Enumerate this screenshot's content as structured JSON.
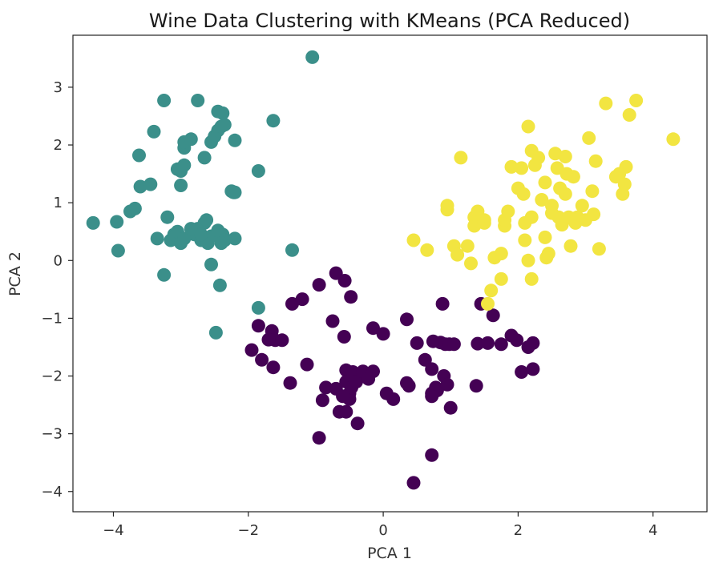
{
  "chart_data": {
    "type": "scatter",
    "title": "Wine Data Clustering with KMeans (PCA Reduced)",
    "xlabel": "PCA 1",
    "ylabel": "PCA 2",
    "xlim": [
      -4.6,
      4.8
    ],
    "ylim": [
      -4.35,
      3.9
    ],
    "xticks": [
      -4,
      -2,
      0,
      2,
      4
    ],
    "xtick_labels": [
      "−4",
      "−2",
      "0",
      "2",
      "4"
    ],
    "yticks": [
      3,
      2,
      1,
      0,
      -1,
      -2,
      -3,
      -4
    ],
    "ytick_labels": [
      "3",
      "2",
      "1",
      "0",
      "−1",
      "−2",
      "−3",
      "−4"
    ],
    "grid": false,
    "legend": false,
    "colormap": "viridis",
    "series": [
      {
        "color": "#440154",
        "points": [
          [
            -1.95,
            -1.55
          ],
          [
            -1.8,
            -1.72
          ],
          [
            -1.85,
            -1.13
          ],
          [
            -1.63,
            -1.85
          ],
          [
            -1.65,
            -1.22
          ],
          [
            -1.6,
            -1.38
          ],
          [
            -1.7,
            -1.37
          ],
          [
            -1.5,
            -1.38
          ],
          [
            -1.38,
            -2.12
          ],
          [
            -1.35,
            -0.75
          ],
          [
            -1.2,
            -0.67
          ],
          [
            -1.13,
            -1.8
          ],
          [
            -0.95,
            -0.42
          ],
          [
            -0.7,
            -0.22
          ],
          [
            -0.75,
            -1.05
          ],
          [
            -0.57,
            -0.35
          ],
          [
            -0.48,
            -0.63
          ],
          [
            -0.58,
            -1.32
          ],
          [
            -0.55,
            -1.9
          ],
          [
            -0.55,
            -2.1
          ],
          [
            -0.5,
            -2.3
          ],
          [
            -0.5,
            -2.4
          ],
          [
            -0.47,
            -2.2
          ],
          [
            -0.45,
            -1.93
          ],
          [
            -0.4,
            -2.1
          ],
          [
            -0.3,
            -1.92
          ],
          [
            -0.15,
            -1.92
          ],
          [
            -0.22,
            -2.05
          ],
          [
            -0.65,
            -2.62
          ],
          [
            -0.55,
            -2.62
          ],
          [
            -0.38,
            -2.82
          ],
          [
            -0.9,
            -2.42
          ],
          [
            -0.85,
            -2.2
          ],
          [
            -0.95,
            -3.07
          ],
          [
            -0.7,
            -2.22
          ],
          [
            -0.6,
            -2.35
          ],
          [
            -0.15,
            -1.17
          ],
          [
            0.0,
            -1.27
          ],
          [
            0.05,
            -2.3
          ],
          [
            0.15,
            -2.4
          ],
          [
            0.35,
            -2.12
          ],
          [
            0.38,
            -2.17
          ],
          [
            0.45,
            -3.85
          ],
          [
            0.35,
            -1.02
          ],
          [
            0.5,
            -1.43
          ],
          [
            0.62,
            -1.72
          ],
          [
            0.72,
            -1.88
          ],
          [
            0.78,
            -2.2
          ],
          [
            0.8,
            -2.25
          ],
          [
            0.72,
            -2.3
          ],
          [
            0.72,
            -2.35
          ],
          [
            0.74,
            -1.4
          ],
          [
            0.85,
            -1.42
          ],
          [
            0.92,
            -1.45
          ],
          [
            0.98,
            -1.45
          ],
          [
            1.05,
            -1.45
          ],
          [
            0.9,
            -2.0
          ],
          [
            0.95,
            -2.15
          ],
          [
            1.0,
            -2.55
          ],
          [
            0.72,
            -3.37
          ],
          [
            1.4,
            -1.44
          ],
          [
            1.38,
            -2.17
          ],
          [
            1.45,
            -0.75
          ],
          [
            1.55,
            -1.43
          ],
          [
            1.63,
            -0.95
          ],
          [
            1.9,
            -1.3
          ],
          [
            1.98,
            -1.38
          ],
          [
            2.05,
            -1.93
          ],
          [
            2.22,
            -1.88
          ],
          [
            2.22,
            -1.43
          ],
          [
            2.15,
            -1.5
          ],
          [
            1.75,
            -1.45
          ],
          [
            0.88,
            -0.75
          ]
        ]
      },
      {
        "color": "#3b8f8a",
        "points": [
          [
            -4.3,
            0.65
          ],
          [
            -3.95,
            0.67
          ],
          [
            -3.93,
            0.17
          ],
          [
            -3.75,
            0.85
          ],
          [
            -3.68,
            0.9
          ],
          [
            -3.6,
            1.28
          ],
          [
            -3.45,
            1.32
          ],
          [
            -3.62,
            1.82
          ],
          [
            -3.4,
            2.23
          ],
          [
            -3.25,
            2.77
          ],
          [
            -3.2,
            0.75
          ],
          [
            -3.15,
            0.35
          ],
          [
            -3.1,
            0.45
          ],
          [
            -3.05,
            0.5
          ],
          [
            -3.0,
            0.3
          ],
          [
            -2.95,
            0.38
          ],
          [
            -3.0,
            1.55
          ],
          [
            -3.05,
            1.58
          ],
          [
            -2.95,
            1.65
          ],
          [
            -3.0,
            1.3
          ],
          [
            -2.95,
            1.95
          ],
          [
            -2.95,
            2.05
          ],
          [
            -2.85,
            2.1
          ],
          [
            -2.75,
            2.77
          ],
          [
            -2.8,
            0.45
          ],
          [
            -2.75,
            0.55
          ],
          [
            -2.7,
            0.35
          ],
          [
            -2.65,
            0.65
          ],
          [
            -2.62,
            0.7
          ],
          [
            -2.6,
            0.3
          ],
          [
            -2.55,
            2.05
          ],
          [
            -2.5,
            2.15
          ],
          [
            -2.45,
            2.25
          ],
          [
            -2.4,
            2.32
          ],
          [
            -2.35,
            2.35
          ],
          [
            -2.55,
            0.42
          ],
          [
            -2.45,
            0.52
          ],
          [
            -2.38,
            0.45
          ],
          [
            -2.35,
            0.35
          ],
          [
            -2.4,
            0.3
          ],
          [
            -2.45,
            2.58
          ],
          [
            -2.38,
            2.55
          ],
          [
            -2.25,
            1.2
          ],
          [
            -2.22,
            1.18
          ],
          [
            -2.2,
            2.08
          ],
          [
            -2.2,
            0.38
          ],
          [
            -2.42,
            -0.43
          ],
          [
            -2.48,
            -1.25
          ],
          [
            -2.55,
            -0.07
          ],
          [
            -2.65,
            1.78
          ],
          [
            -3.25,
            -0.25
          ],
          [
            -1.85,
            1.55
          ],
          [
            -1.63,
            2.42
          ],
          [
            -1.35,
            0.18
          ],
          [
            -1.05,
            3.52
          ],
          [
            -1.85,
            -0.82
          ],
          [
            -2.2,
            1.18
          ],
          [
            -2.7,
            0.45
          ],
          [
            -2.85,
            0.55
          ],
          [
            -3.35,
            0.38
          ]
        ]
      },
      {
        "color": "#f2e541",
        "points": [
          [
            0.45,
            0.35
          ],
          [
            0.65,
            0.18
          ],
          [
            0.95,
            0.95
          ],
          [
            0.95,
            0.88
          ],
          [
            1.05,
            0.25
          ],
          [
            1.1,
            0.1
          ],
          [
            1.15,
            1.78
          ],
          [
            1.25,
            0.25
          ],
          [
            1.3,
            -0.05
          ],
          [
            1.35,
            0.6
          ],
          [
            1.35,
            0.75
          ],
          [
            1.4,
            0.85
          ],
          [
            1.42,
            0.67
          ],
          [
            1.5,
            0.7
          ],
          [
            1.5,
            0.65
          ],
          [
            1.55,
            -0.75
          ],
          [
            1.6,
            -0.52
          ],
          [
            1.65,
            0.05
          ],
          [
            1.75,
            -0.32
          ],
          [
            1.75,
            0.12
          ],
          [
            1.8,
            0.6
          ],
          [
            1.8,
            0.7
          ],
          [
            1.85,
            0.85
          ],
          [
            1.9,
            1.62
          ],
          [
            2.0,
            1.25
          ],
          [
            2.05,
            1.6
          ],
          [
            2.08,
            1.15
          ],
          [
            2.1,
            0.65
          ],
          [
            2.1,
            0.35
          ],
          [
            2.15,
            0.0
          ],
          [
            2.15,
            2.32
          ],
          [
            2.2,
            0.75
          ],
          [
            2.2,
            -0.32
          ],
          [
            2.2,
            1.9
          ],
          [
            2.25,
            1.65
          ],
          [
            2.35,
            1.05
          ],
          [
            2.4,
            1.35
          ],
          [
            2.4,
            0.4
          ],
          [
            2.45,
            0.12
          ],
          [
            2.42,
            0.05
          ],
          [
            2.5,
            0.95
          ],
          [
            2.5,
            0.82
          ],
          [
            2.55,
            1.85
          ],
          [
            2.58,
            1.6
          ],
          [
            2.6,
            0.75
          ],
          [
            2.62,
            1.25
          ],
          [
            2.65,
            0.62
          ],
          [
            2.7,
            1.15
          ],
          [
            2.72,
            1.5
          ],
          [
            2.75,
            0.75
          ],
          [
            2.7,
            1.8
          ],
          [
            2.78,
            0.25
          ],
          [
            2.82,
            1.45
          ],
          [
            2.85,
            0.65
          ],
          [
            2.88,
            0.75
          ],
          [
            2.95,
            0.95
          ],
          [
            3.0,
            0.7
          ],
          [
            3.05,
            2.12
          ],
          [
            3.1,
            1.2
          ],
          [
            3.12,
            0.8
          ],
          [
            3.15,
            1.72
          ],
          [
            3.2,
            0.2
          ],
          [
            3.3,
            2.72
          ],
          [
            3.45,
            1.45
          ],
          [
            3.5,
            1.5
          ],
          [
            3.55,
            1.15
          ],
          [
            3.58,
            1.32
          ],
          [
            3.6,
            1.62
          ],
          [
            3.65,
            2.52
          ],
          [
            3.75,
            2.77
          ],
          [
            4.3,
            2.1
          ],
          [
            2.3,
            1.78
          ]
        ]
      }
    ]
  }
}
